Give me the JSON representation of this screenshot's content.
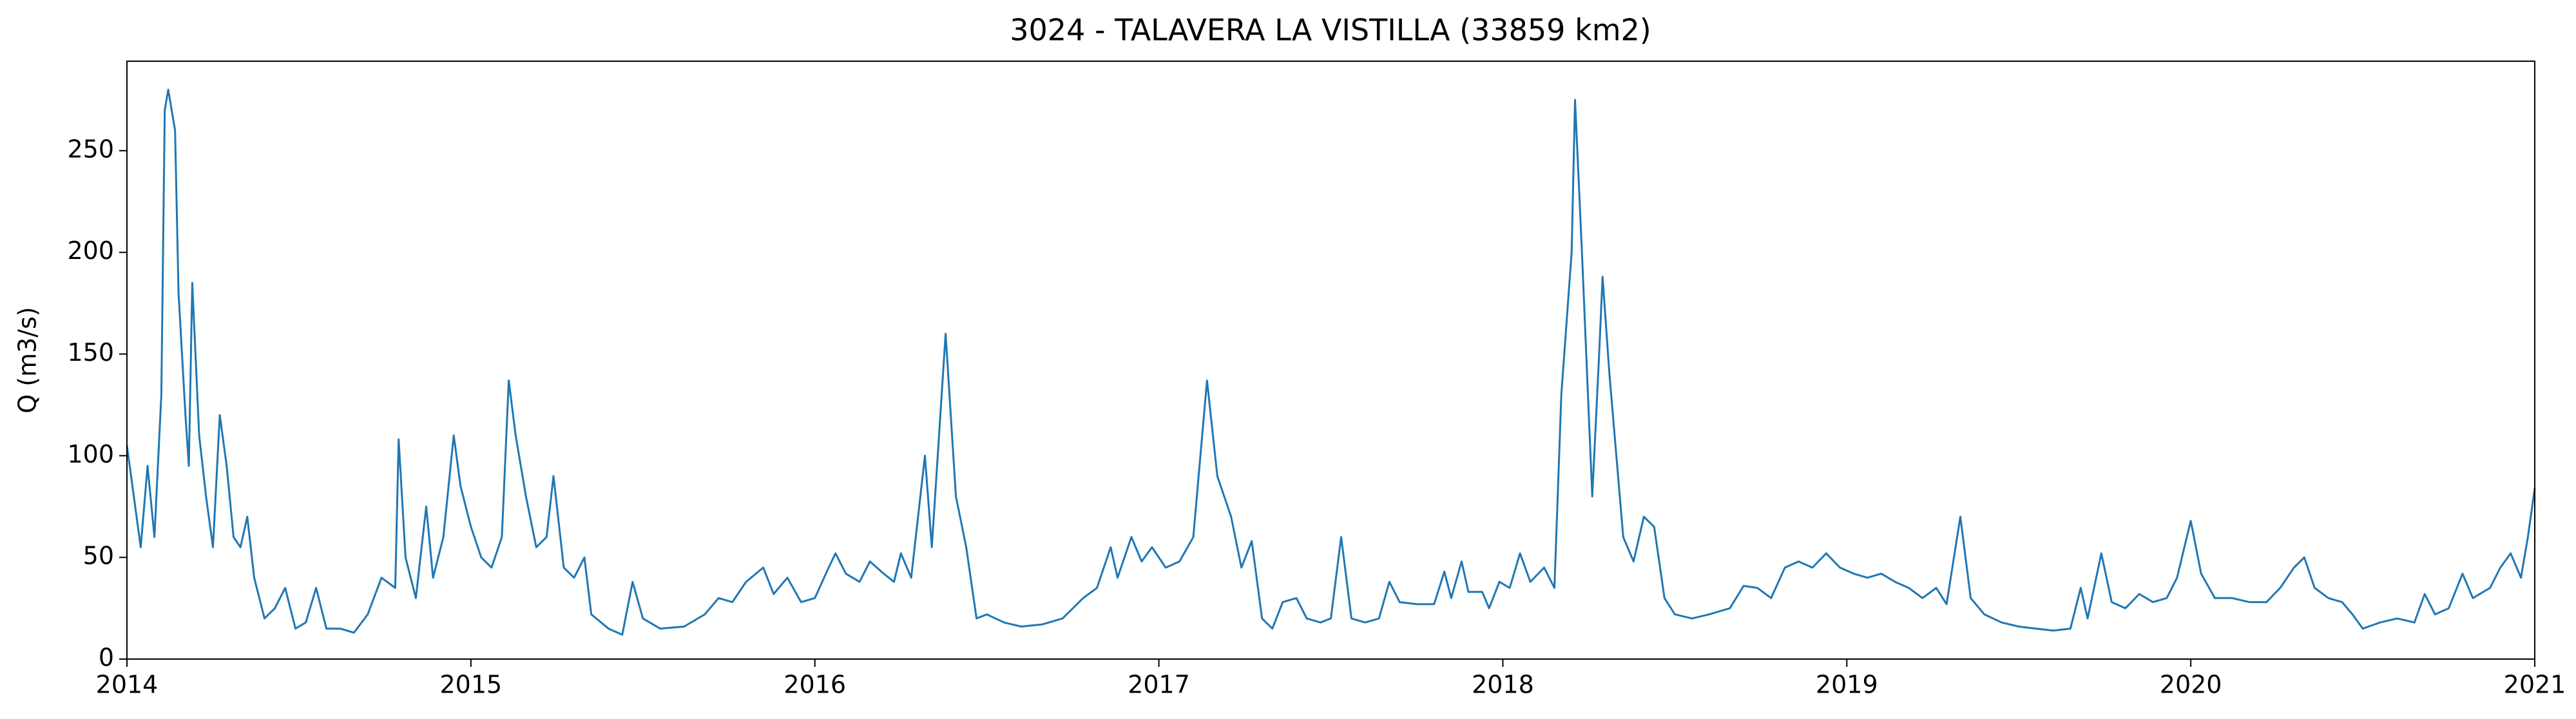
{
  "chart_data": {
    "type": "line",
    "title": "3024 - TALAVERA LA VISTILLA (33859 km2)",
    "ylabel": "Q (m3/s)",
    "x": [
      2014.0,
      2014.02,
      2014.04,
      2014.06,
      2014.08,
      2014.1,
      2014.11,
      2014.12,
      2014.14,
      2014.15,
      2014.17,
      2014.18,
      2014.19,
      2014.21,
      2014.23,
      2014.25,
      2014.27,
      2014.29,
      2014.31,
      2014.33,
      2014.35,
      2014.37,
      2014.4,
      2014.43,
      2014.46,
      2014.49,
      2014.52,
      2014.55,
      2014.58,
      2014.62,
      2014.66,
      2014.7,
      2014.74,
      2014.78,
      2014.79,
      2014.81,
      2014.84,
      2014.87,
      2014.89,
      2014.92,
      2014.95,
      2014.97,
      2015.0,
      2015.03,
      2015.06,
      2015.09,
      2015.11,
      2015.13,
      2015.16,
      2015.19,
      2015.22,
      2015.24,
      2015.27,
      2015.3,
      2015.33,
      2015.35,
      2015.4,
      2015.44,
      2015.47,
      2015.5,
      2015.55,
      2015.62,
      2015.68,
      2015.72,
      2015.76,
      2015.8,
      2015.85,
      2015.88,
      2015.92,
      2015.96,
      2016.0,
      2016.04,
      2016.06,
      2016.09,
      2016.13,
      2016.16,
      2016.2,
      2016.23,
      2016.25,
      2016.28,
      2016.32,
      2016.34,
      2016.38,
      2016.41,
      2016.44,
      2016.47,
      2016.5,
      2016.55,
      2016.6,
      2016.66,
      2016.72,
      2016.78,
      2016.82,
      2016.86,
      2016.88,
      2016.92,
      2016.95,
      2016.98,
      2017.02,
      2017.06,
      2017.1,
      2017.14,
      2017.17,
      2017.21,
      2017.24,
      2017.27,
      2017.3,
      2017.33,
      2017.36,
      2017.4,
      2017.43,
      2017.47,
      2017.5,
      2017.53,
      2017.56,
      2017.6,
      2017.64,
      2017.67,
      2017.7,
      2017.75,
      2017.8,
      2017.83,
      2017.85,
      2017.88,
      2017.9,
      2017.94,
      2017.96,
      2017.99,
      2018.02,
      2018.05,
      2018.08,
      2018.12,
      2018.15,
      2018.17,
      2018.2,
      2018.21,
      2018.23,
      2018.26,
      2018.28,
      2018.29,
      2018.31,
      2018.33,
      2018.35,
      2018.38,
      2018.41,
      2018.44,
      2018.47,
      2018.5,
      2018.55,
      2018.6,
      2018.66,
      2018.7,
      2018.74,
      2018.78,
      2018.82,
      2018.86,
      2018.9,
      2018.94,
      2018.98,
      2019.02,
      2019.06,
      2019.1,
      2019.14,
      2019.18,
      2019.22,
      2019.26,
      2019.29,
      2019.33,
      2019.36,
      2019.4,
      2019.45,
      2019.5,
      2019.55,
      2019.6,
      2019.65,
      2019.68,
      2019.7,
      2019.74,
      2019.77,
      2019.81,
      2019.85,
      2019.89,
      2019.93,
      2019.96,
      2020.0,
      2020.03,
      2020.07,
      2020.12,
      2020.17,
      2020.22,
      2020.26,
      2020.3,
      2020.33,
      2020.36,
      2020.4,
      2020.44,
      2020.47,
      2020.5,
      2020.55,
      2020.6,
      2020.65,
      2020.68,
      2020.71,
      2020.75,
      2020.79,
      2020.82,
      2020.87,
      2020.9,
      2020.93,
      2020.96,
      2020.98,
      2021.0
    ],
    "series": [
      {
        "color": "#1f77b4",
        "values": [
          105,
          80,
          55,
          95,
          60,
          130,
          270,
          280,
          260,
          180,
          120,
          95,
          185,
          110,
          80,
          55,
          120,
          95,
          60,
          55,
          70,
          40,
          20,
          25,
          35,
          15,
          18,
          35,
          15,
          15,
          13,
          22,
          40,
          35,
          108,
          50,
          30,
          75,
          40,
          60,
          110,
          85,
          65,
          50,
          45,
          60,
          137,
          110,
          80,
          55,
          60,
          90,
          45,
          40,
          50,
          22,
          15,
          12,
          38,
          20,
          15,
          16,
          22,
          30,
          28,
          38,
          45,
          32,
          40,
          28,
          30,
          45,
          52,
          42,
          38,
          48,
          42,
          38,
          52,
          40,
          100,
          55,
          160,
          80,
          55,
          20,
          22,
          18,
          16,
          17,
          20,
          30,
          35,
          55,
          40,
          60,
          48,
          55,
          45,
          48,
          60,
          137,
          90,
          70,
          45,
          58,
          20,
          15,
          28,
          30,
          20,
          18,
          20,
          60,
          20,
          18,
          20,
          38,
          28,
          27,
          27,
          43,
          30,
          48,
          33,
          33,
          25,
          38,
          35,
          52,
          38,
          45,
          35,
          130,
          200,
          275,
          200,
          80,
          150,
          188,
          140,
          100,
          60,
          48,
          70,
          65,
          30,
          22,
          20,
          22,
          25,
          36,
          35,
          30,
          45,
          48,
          45,
          52,
          45,
          42,
          40,
          42,
          38,
          35,
          30,
          35,
          27,
          70,
          30,
          22,
          18,
          16,
          15,
          14,
          15,
          35,
          20,
          52,
          28,
          25,
          32,
          28,
          30,
          40,
          68,
          42,
          30,
          30,
          28,
          28,
          35,
          45,
          50,
          35,
          30,
          28,
          22,
          15,
          18,
          20,
          18,
          32,
          22,
          25,
          42,
          30,
          35,
          45,
          52,
          40,
          60,
          84
        ]
      }
    ],
    "xlim": [
      2014,
      2021
    ],
    "xticks": [
      2014,
      2015,
      2016,
      2017,
      2018,
      2019,
      2020,
      2021
    ],
    "ylim": [
      0,
      294
    ],
    "yticks": [
      0,
      50,
      100,
      150,
      200,
      250
    ]
  }
}
